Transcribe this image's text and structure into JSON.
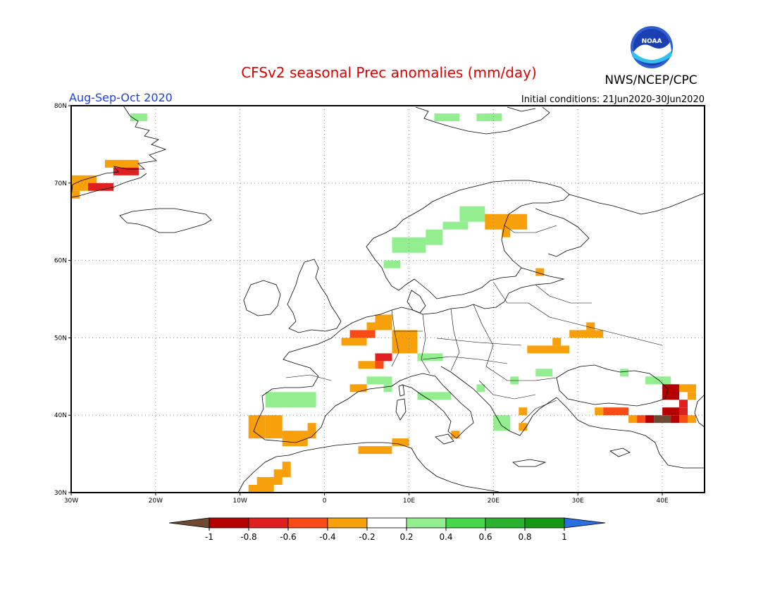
{
  "header": {
    "title": "CFSv2 seasonal Prec anomalies (mm/day)",
    "season": "Aug-Sep-Oct 2020",
    "initial_conditions": "Initial conditions: 21Jun2020-30Jun2020",
    "agency": "NWS/NCEP/CPC",
    "logo_text": "NOAA"
  },
  "map": {
    "lon_range": [
      -30,
      45
    ],
    "lat_range": [
      30,
      80
    ],
    "lon_ticks": [
      "30W",
      "20W",
      "10W",
      "0",
      "10E",
      "20E",
      "30E",
      "40E"
    ],
    "lat_ticks": [
      "80N",
      "70N",
      "60N",
      "50N",
      "40N",
      "30N"
    ],
    "gridlines": true
  },
  "colorbar": {
    "labels": [
      "-1",
      "-0.8",
      "-0.6",
      "-0.4",
      "-0.2",
      "0.2",
      "0.4",
      "0.6",
      "0.8",
      "1"
    ],
    "colors": [
      "#6e4a33",
      "#b40000",
      "#e02020",
      "#fa4b16",
      "#f8a00a",
      "#ffffff",
      "#92ee8e",
      "#46d64b",
      "#29b22d",
      "#139913",
      "#2a6fe0"
    ]
  },
  "anomaly_cells": [
    {
      "lon": -22.5,
      "lat": 78.5,
      "w": 2,
      "h": 1,
      "c": 6
    },
    {
      "lon": -25.5,
      "lat": 72.5,
      "w": 4,
      "h": 1,
      "c": 4
    },
    {
      "lon": -24.5,
      "lat": 71.5,
      "w": 3,
      "h": 1,
      "c": 2
    },
    {
      "lon": -29.5,
      "lat": 70.5,
      "w": 3,
      "h": 1,
      "c": 4
    },
    {
      "lon": -27.5,
      "lat": 69.5,
      "w": 3,
      "h": 1,
      "c": 2
    },
    {
      "lon": -29.5,
      "lat": 69.5,
      "w": 2,
      "h": 1,
      "c": 4
    },
    {
      "lon": -29.5,
      "lat": 68.5,
      "w": 1,
      "h": 1,
      "c": 4
    },
    {
      "lon": 13.5,
      "lat": 78.5,
      "w": 3,
      "h": 1,
      "c": 6
    },
    {
      "lon": 18.5,
      "lat": 78.5,
      "w": 3,
      "h": 1,
      "c": 6
    },
    {
      "lon": 12.5,
      "lat": 62.5,
      "w": 2,
      "h": 2,
      "c": 6
    },
    {
      "lon": 8.5,
      "lat": 61.5,
      "w": 4,
      "h": 2,
      "c": 6
    },
    {
      "lon": 7.5,
      "lat": 59.5,
      "w": 2,
      "h": 1,
      "c": 6
    },
    {
      "lon": 14.5,
      "lat": 64.5,
      "w": 3,
      "h": 1,
      "c": 6
    },
    {
      "lon": 16.5,
      "lat": 65.5,
      "w": 3,
      "h": 2,
      "c": 6
    },
    {
      "lon": 19.5,
      "lat": 64.5,
      "w": 5,
      "h": 2,
      "c": 4
    },
    {
      "lon": 21.5,
      "lat": 63.5,
      "w": 1,
      "h": 1,
      "c": 4
    },
    {
      "lon": 25.5,
      "lat": 58.5,
      "w": 1,
      "h": 1,
      "c": 4
    },
    {
      "lon": 2.5,
      "lat": 49.5,
      "w": 3,
      "h": 1,
      "c": 4
    },
    {
      "lon": 3.5,
      "lat": 50.5,
      "w": 3,
      "h": 1,
      "c": 3
    },
    {
      "lon": 5.5,
      "lat": 51.5,
      "w": 3,
      "h": 1,
      "c": 4
    },
    {
      "lon": 6.5,
      "lat": 52.5,
      "w": 2,
      "h": 1,
      "c": 4
    },
    {
      "lon": 8.5,
      "lat": 50.5,
      "w": 3,
      "h": 1,
      "c": 4
    },
    {
      "lon": 8.5,
      "lat": 48.5,
      "w": 3,
      "h": 2,
      "c": 4
    },
    {
      "lon": 6.5,
      "lat": 47.5,
      "w": 2,
      "h": 1,
      "c": 2
    },
    {
      "lon": 4.5,
      "lat": 46.5,
      "w": 2,
      "h": 1,
      "c": 4
    },
    {
      "lon": 6.5,
      "lat": 46.5,
      "w": 1,
      "h": 1,
      "c": 3
    },
    {
      "lon": 11.5,
      "lat": 47.5,
      "w": 3,
      "h": 1,
      "c": 6
    },
    {
      "lon": 3.5,
      "lat": 43.5,
      "w": 2,
      "h": 1,
      "c": 4
    },
    {
      "lon": 5.5,
      "lat": 44.5,
      "w": 3,
      "h": 1,
      "c": 6
    },
    {
      "lon": 7.5,
      "lat": 43.5,
      "w": 1,
      "h": 1,
      "c": 6
    },
    {
      "lon": 11.5,
      "lat": 42.5,
      "w": 3,
      "h": 1,
      "c": 6
    },
    {
      "lon": 14.5,
      "lat": 42.5,
      "w": 1,
      "h": 1,
      "c": 6
    },
    {
      "lon": 18.5,
      "lat": 43.5,
      "w": 1,
      "h": 1,
      "c": 6
    },
    {
      "lon": 22.5,
      "lat": 44.5,
      "w": 1,
      "h": 1,
      "c": 6
    },
    {
      "lon": 25.5,
      "lat": 45.5,
      "w": 2,
      "h": 1,
      "c": 6
    },
    {
      "lon": 24.5,
      "lat": 48.5,
      "w": 5,
      "h": 1,
      "c": 4
    },
    {
      "lon": 27.5,
      "lat": 49.5,
      "w": 1,
      "h": 1,
      "c": 4
    },
    {
      "lon": 29.5,
      "lat": 50.5,
      "w": 4,
      "h": 1,
      "c": 4
    },
    {
      "lon": 31.5,
      "lat": 51.5,
      "w": 1,
      "h": 1,
      "c": 4
    },
    {
      "lon": 15.5,
      "lat": 37.5,
      "w": 1,
      "h": 1,
      "c": 4
    },
    {
      "lon": 20.5,
      "lat": 38.5,
      "w": 2,
      "h": 2,
      "c": 6
    },
    {
      "lon": 23.5,
      "lat": 40.5,
      "w": 1,
      "h": 1,
      "c": 4
    },
    {
      "lon": 23.5,
      "lat": 38.5,
      "w": 1,
      "h": 1,
      "c": 4
    },
    {
      "lon": 4.5,
      "lat": 35.5,
      "w": 4,
      "h": 1,
      "c": 4
    },
    {
      "lon": 8.5,
      "lat": 36.5,
      "w": 2,
      "h": 1,
      "c": 4
    },
    {
      "lon": -6.5,
      "lat": 41.5,
      "w": 6,
      "h": 2,
      "c": 6
    },
    {
      "lon": -8.5,
      "lat": 37.5,
      "w": 2,
      "h": 3,
      "c": 4
    },
    {
      "lon": -6.5,
      "lat": 37.5,
      "w": 2,
      "h": 3,
      "c": 4
    },
    {
      "lon": -4.5,
      "lat": 36.5,
      "w": 3,
      "h": 2,
      "c": 4
    },
    {
      "lon": -1.5,
      "lat": 37.5,
      "w": 1,
      "h": 2,
      "c": 4
    },
    {
      "lon": -8.5,
      "lat": 30.5,
      "w": 3,
      "h": 1,
      "c": 4
    },
    {
      "lon": -7.5,
      "lat": 31.5,
      "w": 3,
      "h": 1,
      "c": 4
    },
    {
      "lon": -5.5,
      "lat": 32.5,
      "w": 2,
      "h": 1,
      "c": 4
    },
    {
      "lon": -4.5,
      "lat": 33.5,
      "w": 1,
      "h": 1,
      "c": 4
    },
    {
      "lon": 32.5,
      "lat": 40.5,
      "w": 1,
      "h": 1,
      "c": 4
    },
    {
      "lon": 33.5,
      "lat": 40.5,
      "w": 3,
      "h": 1,
      "c": 3
    },
    {
      "lon": 35.5,
      "lat": 45.5,
      "w": 1,
      "h": 1,
      "c": 6
    },
    {
      "lon": 38.5,
      "lat": 44.5,
      "w": 3,
      "h": 1,
      "c": 6
    },
    {
      "lon": 40.5,
      "lat": 42.5,
      "w": 2,
      "h": 2,
      "c": 1
    },
    {
      "lon": 42.5,
      "lat": 43.5,
      "w": 2,
      "h": 1,
      "c": 4
    },
    {
      "lon": 43.5,
      "lat": 42.5,
      "w": 1,
      "h": 1,
      "c": 4
    },
    {
      "lon": 42.5,
      "lat": 41.5,
      "w": 1,
      "h": 1,
      "c": 2
    },
    {
      "lon": 40.5,
      "lat": 40.5,
      "w": 2,
      "h": 1,
      "c": 1
    },
    {
      "lon": 42.5,
      "lat": 40.5,
      "w": 1,
      "h": 1,
      "c": 2
    },
    {
      "lon": 36.5,
      "lat": 39.5,
      "w": 1,
      "h": 1,
      "c": 4
    },
    {
      "lon": 37.5,
      "lat": 39.5,
      "w": 1,
      "h": 1,
      "c": 3
    },
    {
      "lon": 38.5,
      "lat": 39.5,
      "w": 1,
      "h": 1,
      "c": 1
    },
    {
      "lon": 39.5,
      "lat": 39.5,
      "w": 2,
      "h": 1,
      "c": 0
    },
    {
      "lon": 41.5,
      "lat": 39.5,
      "w": 1,
      "h": 1,
      "c": 1
    },
    {
      "lon": 42.5,
      "lat": 39.5,
      "w": 1,
      "h": 1,
      "c": 3
    },
    {
      "lon": 43.5,
      "lat": 39.5,
      "w": 1,
      "h": 1,
      "c": 4
    }
  ]
}
